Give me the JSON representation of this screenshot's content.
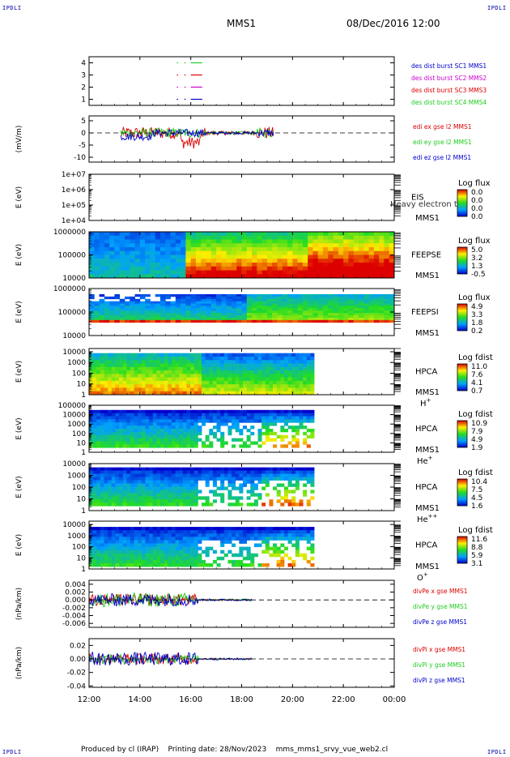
{
  "header": {
    "corner_label": "IPDLI",
    "title": "MMS1",
    "datetime": "08/Dec/2016 12:00"
  },
  "footer": {
    "text": "Produced by cl (IRAP)    Printing date: 28/Nov/2023    mms_mms1_srvy_vue_web2.cl"
  },
  "colors": {
    "red": "#dd0000",
    "green": "#22cc22",
    "blue": "#0000cc",
    "magenta": "#cc00cc",
    "frame": "#000000"
  },
  "chart_data": [
    {
      "id": "burst",
      "type": "line",
      "ylim": [
        0.5,
        4.5
      ],
      "y_ticks": [
        1,
        2,
        3,
        4
      ],
      "y_tick_labels": [
        "1",
        "2",
        "3",
        "4"
      ],
      "ylabel": "",
      "legend": [
        {
          "name": "des dist burst SC1 MMS1",
          "color": "#0000cc"
        },
        {
          "name": "des dist burst SC2 MMS2",
          "color": "#cc00cc"
        },
        {
          "name": "des dist burst SC3 MMS3",
          "color": "#dd0000"
        },
        {
          "name": "des dist burst SC4 MMS4",
          "color": "#22cc22"
        }
      ],
      "series": [
        {
          "level": 4,
          "color": "#22cc22",
          "intervals": [
            [
              15.45,
              15.5
            ],
            [
              15.75,
              15.8
            ],
            [
              16.0,
              16.45
            ]
          ]
        },
        {
          "level": 3,
          "color": "#dd0000",
          "intervals": [
            [
              15.45,
              15.5
            ],
            [
              15.75,
              15.8
            ],
            [
              16.0,
              16.45
            ]
          ]
        },
        {
          "level": 2,
          "color": "#cc00cc",
          "intervals": [
            [
              15.45,
              15.5
            ],
            [
              15.75,
              15.8
            ],
            [
              16.0,
              16.45
            ]
          ]
        },
        {
          "level": 1,
          "color": "#0000cc",
          "intervals": [
            [
              15.45,
              15.5
            ],
            [
              15.75,
              15.8
            ],
            [
              16.0,
              16.45
            ]
          ]
        }
      ]
    },
    {
      "id": "edi",
      "type": "line",
      "ylim": [
        -12,
        7
      ],
      "y_ticks": [
        5,
        0,
        -5,
        -10
      ],
      "y_tick_labels": [
        "5",
        "0",
        "-5",
        "-10"
      ],
      "ylabel": "(mV/m)",
      "zero_line": true,
      "x_range": [
        13.25,
        19.25
      ],
      "legend": [
        {
          "name": "edi ex gse l2 MMS1",
          "color": "#dd0000"
        },
        {
          "name": "edi ey gse l2 MMS1",
          "color": "#22cc22"
        },
        {
          "name": "edi ez gse l2 MMS1",
          "color": "#0000cc"
        }
      ]
    },
    {
      "id": "eis",
      "type": "heatmap",
      "log": true,
      "ylim": [
        10000,
        10000000
      ],
      "y_ticks": [
        10000,
        100000,
        1000000,
        10000000
      ],
      "y_tick_labels": [
        "1e+04",
        "1e+05",
        "1e+06",
        "1e+07"
      ],
      "ylabel": "E (eV)",
      "instrument": [
        "EIS",
        "MMS1"
      ],
      "overlay_text": "Heavy electron to",
      "colorbar_title": "Log flux",
      "colorbar_ticks": [
        "0.0",
        "0.0",
        "0.0",
        "0.0"
      ],
      "empty": true
    },
    {
      "id": "feepse",
      "type": "heatmap",
      "log": true,
      "ylim": [
        10000,
        1000000
      ],
      "y_ticks": [
        10000,
        100000,
        1000000
      ],
      "y_tick_labels": [
        "10000",
        "100000",
        "1000000"
      ],
      "ylabel": "E (eV)",
      "instrument": [
        "FEEPSE",
        "MMS1"
      ],
      "colorbar_title": "Log flux",
      "colorbar_ticks": [
        "5.0",
        "3.2",
        "1.3",
        "-0.5"
      ],
      "x_range": [
        12.0,
        24.0
      ],
      "y_fill": [
        0.0,
        1.0
      ]
    },
    {
      "id": "feepsi",
      "type": "heatmap",
      "log": true,
      "ylim": [
        10000,
        1000000
      ],
      "y_ticks": [
        10000,
        100000,
        1000000
      ],
      "y_tick_labels": [
        "10000",
        "100000",
        "1000000"
      ],
      "ylabel": "E (eV)",
      "instrument": [
        "FEEPSI",
        "MMS1"
      ],
      "colorbar_title": "Log flux",
      "colorbar_ticks": [
        "4.9",
        "3.3",
        "1.8",
        "0.2"
      ],
      "x_range": [
        12.0,
        24.0
      ],
      "y_fill": [
        0.28,
        0.88
      ]
    },
    {
      "id": "hpca_h",
      "type": "heatmap",
      "log": true,
      "ylim": [
        1,
        20000
      ],
      "y_ticks": [
        1,
        10,
        100,
        1000,
        10000
      ],
      "y_tick_labels": [
        "1",
        "10",
        "100",
        "1000",
        "10000"
      ],
      "ylabel": "E (eV)",
      "instrument": [
        "HPCA",
        "MMS1"
      ],
      "species": "H",
      "species_charge": "+",
      "colorbar_title": "Log fdist",
      "colorbar_ticks": [
        "11.0",
        "7.6",
        "4.1",
        "0.7"
      ],
      "x_range": [
        12.0,
        20.85
      ],
      "y_fill": [
        0.0,
        0.9
      ]
    },
    {
      "id": "hpca_he1",
      "type": "heatmap",
      "log": true,
      "ylim": [
        1,
        100000
      ],
      "y_ticks": [
        1,
        10,
        100,
        1000,
        10000,
        100000
      ],
      "y_tick_labels": [
        "1",
        "10",
        "100",
        "1000",
        "10000",
        "100000"
      ],
      "ylabel": "E (eV)",
      "instrument": [
        "HPCA",
        "MMS1"
      ],
      "species": "He",
      "species_charge": "+",
      "colorbar_title": "Log fdist",
      "colorbar_ticks": [
        "10.9",
        "7.9",
        "4.9",
        "1.9"
      ],
      "x_range": [
        12.0,
        20.85
      ],
      "y_fill": [
        0.1,
        0.9
      ]
    },
    {
      "id": "hpca_he2",
      "type": "heatmap",
      "log": true,
      "ylim": [
        1,
        10000
      ],
      "y_ticks": [
        1,
        10,
        100,
        1000,
        10000
      ],
      "y_tick_labels": [
        "1",
        "10",
        "100",
        "1000",
        "10000"
      ],
      "ylabel": "E (eV)",
      "instrument": [
        "HPCA",
        "MMS1"
      ],
      "species": "He",
      "species_charge": "++",
      "colorbar_title": "Log fdist",
      "colorbar_ticks": [
        "10.4",
        "7.5",
        "4.5",
        "1.6"
      ],
      "x_range": [
        12.0,
        20.85
      ],
      "y_fill": [
        0.1,
        0.92
      ]
    },
    {
      "id": "hpca_o",
      "type": "heatmap",
      "log": true,
      "ylim": [
        1,
        20000
      ],
      "y_ticks": [
        1,
        10,
        100,
        1000,
        10000
      ],
      "y_tick_labels": [
        "1",
        "10",
        "100",
        "1000",
        "10000"
      ],
      "ylabel": "E (eV)",
      "instrument": [
        "HPCA",
        "MMS1"
      ],
      "species": "O",
      "species_charge": "+",
      "colorbar_title": "Log fdist",
      "colorbar_ticks": [
        "11.6",
        "8.8",
        "5.9",
        "3.1"
      ],
      "x_range": [
        12.0,
        20.85
      ],
      "y_fill": [
        0.05,
        0.88
      ]
    },
    {
      "id": "divpe",
      "type": "line",
      "ylim": [
        -0.007,
        0.005
      ],
      "y_ticks": [
        0.004,
        0.002,
        0.0,
        -0.002,
        -0.004,
        -0.006
      ],
      "y_tick_labels": [
        "0.004",
        "0.002",
        "0.000",
        "-0.002",
        "-0.004",
        "-0.006"
      ],
      "ylabel": "(nPa/km)",
      "zero_line": true,
      "x_range": [
        12.0,
        18.4
      ],
      "legend": [
        {
          "name": "divPe x gse MMS1",
          "color": "#dd0000"
        },
        {
          "name": "divPe y gse MMS1",
          "color": "#22cc22"
        },
        {
          "name": "divPe z gse MMS1",
          "color": "#0000cc"
        }
      ]
    },
    {
      "id": "divpi",
      "type": "line",
      "ylim": [
        -0.042,
        0.03
      ],
      "y_ticks": [
        0.02,
        0.0,
        -0.02,
        -0.04
      ],
      "y_tick_labels": [
        "0.02",
        "0.00",
        "-0.02",
        "-0.04"
      ],
      "ylabel": "(nPa/km)",
      "zero_line": true,
      "x_range": [
        12.0,
        18.4
      ],
      "legend": [
        {
          "name": "divPi x gse MMS1",
          "color": "#dd0000"
        },
        {
          "name": "divPi y gse MMS1",
          "color": "#22cc22"
        },
        {
          "name": "divPi z gse MMS1",
          "color": "#0000cc"
        }
      ]
    }
  ],
  "x_axis": {
    "xlim": [
      12,
      24
    ],
    "ticks": [
      12,
      14,
      16,
      18,
      20,
      22,
      24
    ],
    "tick_labels": [
      "12:00",
      "14:00",
      "16:00",
      "18:00",
      "20:00",
      "22:00",
      "00:00"
    ]
  }
}
